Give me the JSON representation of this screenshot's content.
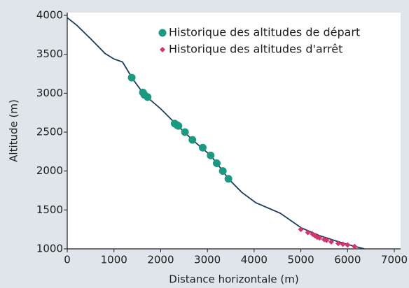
{
  "chart_data": {
    "type": "line",
    "xlabel": "Distance horizontale (m)",
    "ylabel": "Altitude (m)",
    "xlim": [
      0,
      7000
    ],
    "xticks": [
      0,
      1000,
      2000,
      3000,
      4000,
      5000,
      6000,
      7000
    ],
    "ylim": [
      1000,
      4000
    ],
    "yticks": [
      1000,
      1500,
      2000,
      2500,
      3000,
      3500,
      4000
    ],
    "legend": "upper right",
    "series": [
      {
        "type": "line",
        "color": "#1d3a60",
        "x": [
          0,
          210,
          500,
          810,
          1000,
          1185,
          1335,
          1380,
          1650,
          2000,
          2350,
          2700,
          3070,
          3330,
          3450,
          3735,
          4035,
          4560,
          5010,
          5400,
          5760,
          6100,
          6360
        ],
        "values": [
          3970,
          3870,
          3700,
          3510,
          3440,
          3400,
          3250,
          3200,
          2980,
          2800,
          2590,
          2390,
          2200,
          2000,
          1900,
          1727,
          1593,
          1458,
          1270,
          1170,
          1100,
          1040,
          1000
        ]
      },
      {
        "type": "scatter",
        "name": "Historique des altitudes de départ",
        "color": "#1a9a80",
        "marker": "circle",
        "x": [
          1380,
          1620,
          1650,
          1720,
          2300,
          2350,
          2380,
          2520,
          2680,
          2900,
          3070,
          3200,
          3330,
          3450
        ],
        "values": [
          3200,
          3010,
          2980,
          2950,
          2610,
          2590,
          2580,
          2500,
          2400,
          2300,
          2200,
          2100,
          2000,
          1900
        ]
      },
      {
        "type": "scatter",
        "name": "Historique des altitudes d'arrêt",
        "color": "#d5336d",
        "marker": "diamond",
        "x": [
          5000,
          5150,
          5250,
          5300,
          5350,
          5400,
          5500,
          5550,
          5650,
          5800,
          5900,
          6000,
          6150
        ],
        "values": [
          1250,
          1210,
          1190,
          1170,
          1150,
          1140,
          1120,
          1110,
          1090,
          1070,
          1060,
          1050,
          1030
        ]
      }
    ]
  }
}
